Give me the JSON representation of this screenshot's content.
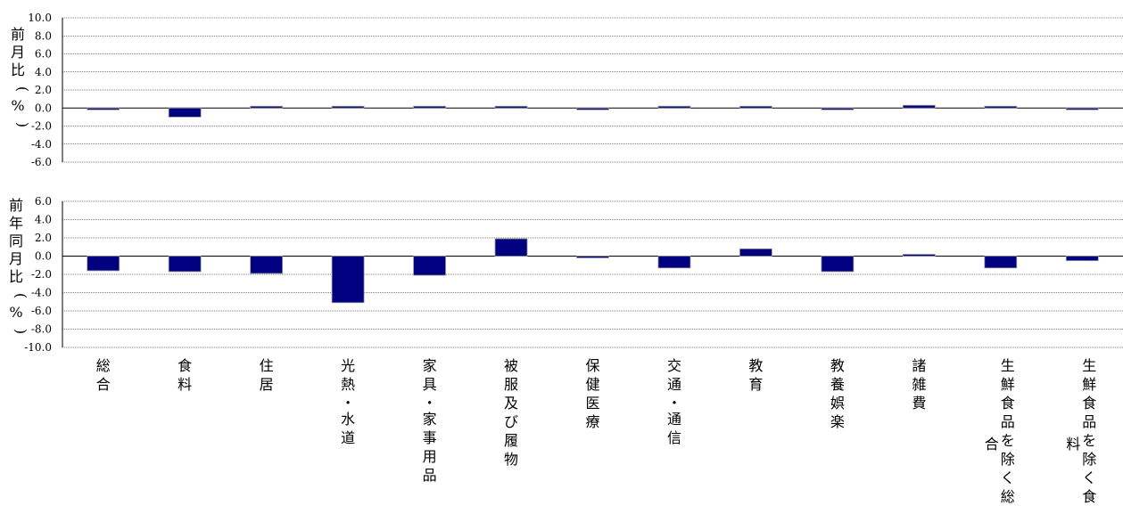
{
  "chart_data": [
    {
      "type": "bar",
      "ylabel": "前月比（%）",
      "ylim": [
        -6.0,
        10.0
      ],
      "yticks": [
        "10.0",
        "8.0",
        "6.0",
        "4.0",
        "2.0",
        "0.0",
        "-2.0",
        "-4.0",
        "-6.0"
      ],
      "categories": [
        "総合",
        "食料",
        "住居",
        "光熱・水道",
        "家具・家事用品",
        "被服及び履物",
        "保健医療",
        "交通・通信",
        "教育",
        "教養娯楽",
        "諸雑費",
        "生鮮食品を除く総合",
        "生鮮食品を除く食料"
      ],
      "values": [
        -0.2,
        -1.0,
        0.0,
        0.0,
        0.0,
        0.0,
        -0.2,
        0.2,
        0.0,
        -0.2,
        0.3,
        0.0,
        -0.1
      ],
      "grid": true
    },
    {
      "type": "bar",
      "ylabel": "前年同月比（%）",
      "ylim": [
        -10.0,
        6.0
      ],
      "yticks": [
        "6.0",
        "4.0",
        "2.0",
        "0.0",
        "-2.0",
        "-4.0",
        "-6.0",
        "-8.0",
        "-10.0"
      ],
      "categories": [
        "総合",
        "食料",
        "住居",
        "光熱・水道",
        "家具・家事用品",
        "被服及び履物",
        "保健医療",
        "交通・通信",
        "教育",
        "教養娯楽",
        "諸雑費",
        "生鮮食品を除く総合",
        "生鮮食品を除く食料"
      ],
      "values": [
        -1.6,
        -1.7,
        -1.9,
        -5.1,
        -2.1,
        1.9,
        -0.1,
        -1.3,
        0.8,
        -1.7,
        0.0,
        -1.3,
        -0.5
      ],
      "grid": true
    }
  ],
  "category_lines": [
    [
      "総",
      "合"
    ],
    [
      "食",
      "料"
    ],
    [
      "住",
      "居"
    ],
    [
      "光",
      "熱",
      "・",
      "水",
      "道"
    ],
    [
      "家",
      "具",
      "・",
      "家",
      "事",
      "用",
      "品"
    ],
    [
      "被",
      "服",
      "及",
      "び",
      "履",
      "物"
    ],
    [
      "保",
      "健",
      "医",
      "療"
    ],
    [
      "交",
      "通",
      "・",
      "通",
      "信"
    ],
    [
      "教",
      "育"
    ],
    [
      "教",
      "養",
      "娯",
      "楽"
    ],
    [
      "諸",
      "雑",
      "費"
    ],
    [
      [
        "生",
        "鮮",
        "食",
        "品",
        "を",
        "除",
        "く",
        "総"
      ],
      [
        "合"
      ]
    ],
    [
      [
        "生",
        "鮮",
        "食",
        "品",
        "を",
        "除",
        "く",
        "食"
      ],
      [
        "料"
      ]
    ]
  ],
  "colors": {
    "bar": "#000080",
    "grid": "#000000"
  }
}
